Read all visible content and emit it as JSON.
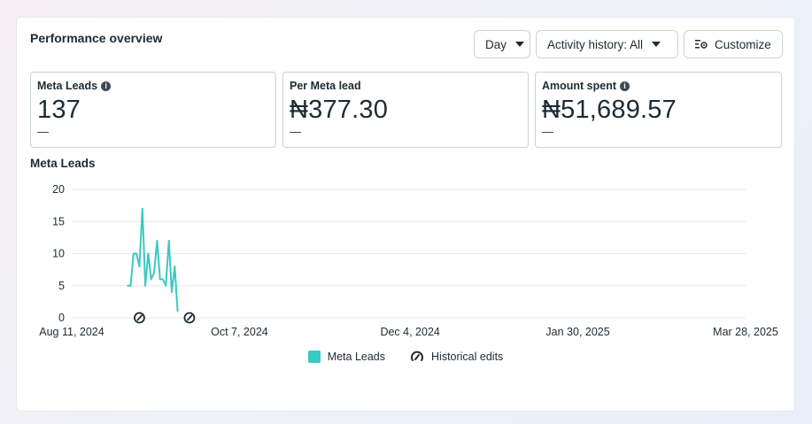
{
  "header": {
    "title": "Performance overview",
    "day_label": "Day",
    "activity_label": "Activity history: All",
    "customize_label": "Customize"
  },
  "metrics": [
    {
      "label": "Meta Leads",
      "value": "137",
      "sub": "—",
      "info": true
    },
    {
      "label": "Per Meta lead",
      "value": "₦377.30",
      "sub": "—",
      "info": false
    },
    {
      "label": "Amount spent",
      "value": "₦51,689.57",
      "sub": "—",
      "info": true
    }
  ],
  "chart_section": {
    "title": "Meta Leads"
  },
  "colors": {
    "series": "#3ac9c2",
    "grid": "#e4e6eb",
    "text": "#1c2b33"
  },
  "chart_data": {
    "type": "line",
    "title": "Meta Leads",
    "x_tick_labels": [
      "Aug 11, 2024",
      "Oct 7, 2024",
      "Dec 4, 2024",
      "Jan 30, 2025",
      "Mar 28, 2025"
    ],
    "x_tick_dates": [
      "2024-08-11",
      "2024-10-07",
      "2024-12-04",
      "2025-01-30",
      "2025-03-28"
    ],
    "ylim": [
      0,
      20
    ],
    "y_ticks": [
      0,
      5,
      10,
      15,
      20
    ],
    "grid": true,
    "series": [
      {
        "name": "Meta Leads",
        "x": [
          "2024-08-30",
          "2024-08-31",
          "2024-09-01",
          "2024-09-02",
          "2024-09-03",
          "2024-09-04",
          "2024-09-05",
          "2024-09-06",
          "2024-09-07",
          "2024-09-08",
          "2024-09-09",
          "2024-09-10",
          "2024-09-11",
          "2024-09-12",
          "2024-09-13",
          "2024-09-14",
          "2024-09-15",
          "2024-09-16",
          "2024-09-17",
          "2024-09-18"
        ],
        "y": [
          5,
          5,
          10,
          10,
          8,
          17,
          5,
          10,
          6,
          7,
          12,
          6,
          6,
          5,
          12,
          4,
          8,
          1,
          null,
          null
        ]
      }
    ],
    "historical_edits": [
      "2024-09-03",
      "2024-09-20"
    ],
    "legend": [
      {
        "label": "Meta Leads",
        "kind": "swatch"
      },
      {
        "label": "Historical edits",
        "kind": "edit-icon"
      }
    ],
    "legend_position": "bottom-center"
  }
}
